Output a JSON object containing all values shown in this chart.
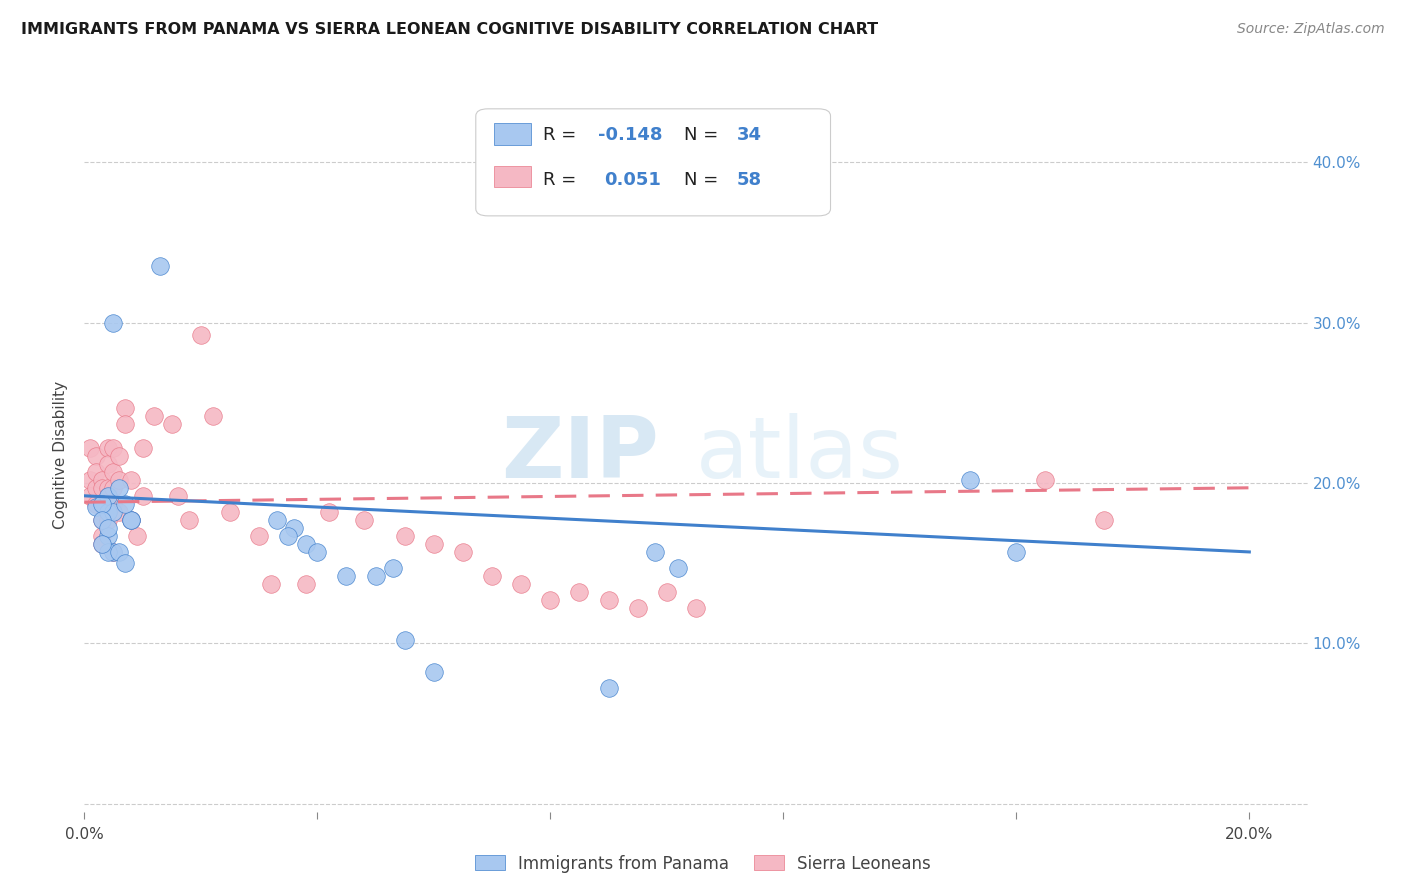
{
  "title": "IMMIGRANTS FROM PANAMA VS SIERRA LEONEAN COGNITIVE DISABILITY CORRELATION CHART",
  "source": "Source: ZipAtlas.com",
  "ylabel": "Cognitive Disability",
  "xlim": [
    0.0,
    0.21
  ],
  "ylim": [
    -0.005,
    0.44
  ],
  "xticks": [
    0.0,
    0.04,
    0.08,
    0.12,
    0.16,
    0.2
  ],
  "yticks": [
    0.0,
    0.1,
    0.2,
    0.3,
    0.4
  ],
  "xticklabels": [
    "0.0%",
    "",
    "",
    "",
    "",
    "20.0%"
  ],
  "yticklabels_right": [
    "",
    "10.0%",
    "20.0%",
    "30.0%",
    "40.0%"
  ],
  "legend_r_blue": "-0.148",
  "legend_n_blue": "34",
  "legend_r_pink": "0.051",
  "legend_n_pink": "58",
  "blue_color": "#a8c8f0",
  "pink_color": "#f5b8c4",
  "blue_line_color": "#4080cc",
  "pink_line_color": "#e87888",
  "watermark_zip": "ZIP",
  "watermark_atlas": "atlas",
  "blue_points_x": [
    0.002,
    0.013,
    0.005,
    0.004,
    0.004,
    0.005,
    0.003,
    0.004,
    0.003,
    0.004,
    0.005,
    0.004,
    0.003,
    0.006,
    0.007,
    0.008,
    0.008,
    0.007,
    0.006,
    0.033,
    0.036,
    0.035,
    0.038,
    0.04,
    0.045,
    0.05,
    0.055,
    0.053,
    0.06,
    0.098,
    0.102,
    0.152,
    0.16,
    0.09
  ],
  "blue_points_y": [
    0.185,
    0.335,
    0.3,
    0.182,
    0.192,
    0.182,
    0.187,
    0.167,
    0.177,
    0.172,
    0.157,
    0.157,
    0.162,
    0.157,
    0.15,
    0.177,
    0.177,
    0.187,
    0.197,
    0.177,
    0.172,
    0.167,
    0.162,
    0.157,
    0.142,
    0.142,
    0.102,
    0.147,
    0.082,
    0.157,
    0.147,
    0.202,
    0.157,
    0.072
  ],
  "pink_points_x": [
    0.001,
    0.001,
    0.001,
    0.002,
    0.002,
    0.002,
    0.002,
    0.003,
    0.003,
    0.003,
    0.003,
    0.003,
    0.003,
    0.004,
    0.004,
    0.004,
    0.004,
    0.004,
    0.005,
    0.005,
    0.005,
    0.005,
    0.005,
    0.006,
    0.006,
    0.006,
    0.007,
    0.007,
    0.008,
    0.008,
    0.009,
    0.01,
    0.01,
    0.012,
    0.015,
    0.016,
    0.018,
    0.02,
    0.022,
    0.025,
    0.03,
    0.032,
    0.038,
    0.042,
    0.048,
    0.055,
    0.06,
    0.065,
    0.07,
    0.075,
    0.08,
    0.085,
    0.09,
    0.095,
    0.1,
    0.105,
    0.165,
    0.175
  ],
  "pink_points_y": [
    0.222,
    0.202,
    0.192,
    0.217,
    0.207,
    0.197,
    0.187,
    0.202,
    0.197,
    0.187,
    0.177,
    0.167,
    0.162,
    0.222,
    0.212,
    0.197,
    0.192,
    0.177,
    0.222,
    0.207,
    0.197,
    0.187,
    0.157,
    0.217,
    0.202,
    0.182,
    0.247,
    0.237,
    0.202,
    0.177,
    0.167,
    0.222,
    0.192,
    0.242,
    0.237,
    0.192,
    0.177,
    0.292,
    0.242,
    0.182,
    0.167,
    0.137,
    0.137,
    0.182,
    0.177,
    0.167,
    0.162,
    0.157,
    0.142,
    0.137,
    0.127,
    0.132,
    0.127,
    0.122,
    0.132,
    0.122,
    0.202,
    0.177
  ],
  "blue_trend_x": [
    0.0,
    0.2
  ],
  "blue_trend_y": [
    0.192,
    0.157
  ],
  "pink_trend_x": [
    0.0,
    0.2
  ],
  "pink_trend_y": [
    0.188,
    0.197
  ]
}
